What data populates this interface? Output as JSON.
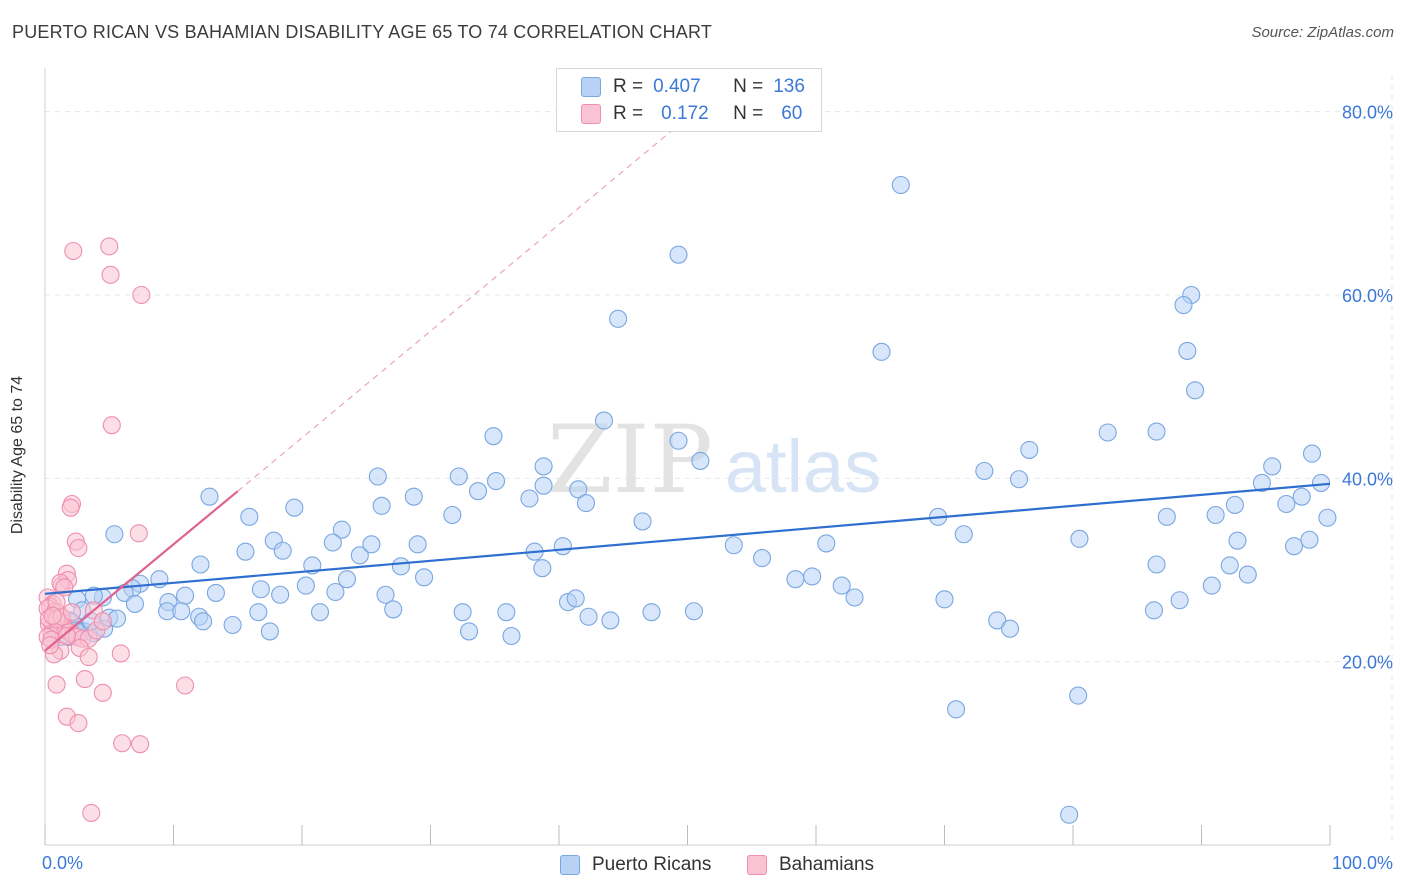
{
  "title": "PUERTO RICAN VS BAHAMIAN DISABILITY AGE 65 TO 74 CORRELATION CHART",
  "source": "Source: ZipAtlas.com",
  "watermark": {
    "zip": "ZIP",
    "atlas": "atlas"
  },
  "legend": {
    "r_label": "R =",
    "n_label": "N =",
    "series": [
      {
        "name": "Puerto Ricans",
        "r": "0.407",
        "n": "136",
        "color": "#7aa7e0",
        "fill": "#b7d2f5"
      },
      {
        "name": "Bahamians",
        "r": "0.172",
        "n": "60",
        "color": "#ee8fae",
        "fill": "#f9c3d4"
      }
    ]
  },
  "colors": {
    "blue_line": "#2f6fcf",
    "pink_line": "#e0628e",
    "axis_text": "#3c78d8",
    "grid": "#e6e6e6"
  },
  "chart_data": {
    "type": "scatter",
    "title": "PUERTO RICAN VS BAHAMIAN DISABILITY AGE 65 TO 74 CORRELATION CHART",
    "xlabel": "",
    "ylabel": "Disability Age 65 to 74",
    "xlim": [
      0,
      100
    ],
    "ylim": [
      0,
      84
    ],
    "x_tick_labels": [
      {
        "value": 0,
        "label": "0.0%"
      },
      {
        "value": 100,
        "label": "100.0%"
      }
    ],
    "y_tick_labels": [
      {
        "value": 20,
        "label": "20.0%"
      },
      {
        "value": 40,
        "label": "40.0%"
      },
      {
        "value": 60,
        "label": "60.0%"
      },
      {
        "value": 80,
        "label": "80.0%"
      }
    ],
    "grid": true,
    "legend_position": "top-center",
    "series": [
      {
        "name": "Puerto Ricans",
        "trend": {
          "x": [
            0,
            100
          ],
          "y": [
            27.4,
            39.4
          ],
          "style": "solid"
        },
        "points": [
          [
            66.6,
            72.0
          ],
          [
            49.3,
            64.4
          ],
          [
            89.2,
            60.0
          ],
          [
            44.6,
            57.4
          ],
          [
            65.1,
            53.8
          ],
          [
            88.6,
            58.9
          ],
          [
            88.9,
            53.9
          ],
          [
            89.5,
            49.6
          ],
          [
            43.5,
            46.3
          ],
          [
            34.9,
            44.6
          ],
          [
            49.3,
            44.1
          ],
          [
            82.7,
            45.0
          ],
          [
            86.5,
            45.1
          ],
          [
            76.6,
            43.1
          ],
          [
            98.6,
            42.7
          ],
          [
            51.0,
            41.9
          ],
          [
            95.5,
            41.3
          ],
          [
            38.8,
            41.3
          ],
          [
            32.2,
            40.2
          ],
          [
            25.9,
            40.2
          ],
          [
            75.8,
            39.9
          ],
          [
            73.1,
            40.8
          ],
          [
            35.1,
            39.7
          ],
          [
            94.7,
            39.5
          ],
          [
            99.3,
            39.5
          ],
          [
            38.8,
            39.2
          ],
          [
            97.8,
            38.0
          ],
          [
            41.5,
            38.8
          ],
          [
            37.7,
            37.8
          ],
          [
            33.7,
            38.6
          ],
          [
            26.2,
            37.0
          ],
          [
            19.4,
            36.8
          ],
          [
            46.5,
            35.3
          ],
          [
            12.8,
            38.0
          ],
          [
            15.9,
            35.8
          ],
          [
            5.4,
            33.9
          ],
          [
            23.1,
            34.4
          ],
          [
            17.8,
            33.2
          ],
          [
            12.1,
            30.6
          ],
          [
            20.8,
            30.5
          ],
          [
            24.5,
            31.6
          ],
          [
            18.5,
            32.1
          ],
          [
            15.6,
            32.0
          ],
          [
            25.4,
            32.8
          ],
          [
            22.4,
            33.0
          ],
          [
            29.0,
            32.8
          ],
          [
            40.3,
            32.6
          ],
          [
            38.1,
            32.0
          ],
          [
            38.7,
            30.2
          ],
          [
            27.7,
            30.4
          ],
          [
            29.5,
            29.2
          ],
          [
            23.5,
            29.0
          ],
          [
            20.3,
            28.3
          ],
          [
            16.8,
            27.9
          ],
          [
            13.3,
            27.5
          ],
          [
            10.9,
            27.2
          ],
          [
            9.6,
            26.5
          ],
          [
            8.9,
            29.0
          ],
          [
            7.4,
            28.5
          ],
          [
            6.8,
            28.0
          ],
          [
            6.2,
            27.5
          ],
          [
            4.5,
            27.0
          ],
          [
            3.8,
            27.2
          ],
          [
            2.5,
            26.8
          ],
          [
            2.9,
            25.6
          ],
          [
            1.9,
            24.5
          ],
          [
            1.4,
            24.3
          ],
          [
            2.1,
            24.3
          ],
          [
            1.1,
            24.0
          ],
          [
            0.8,
            23.4
          ],
          [
            1.8,
            22.7
          ],
          [
            1.2,
            22.7
          ],
          [
            2.7,
            23.4
          ],
          [
            3.1,
            23.3
          ],
          [
            3.8,
            23.1
          ],
          [
            4.6,
            23.6
          ],
          [
            5.0,
            24.8
          ],
          [
            5.6,
            24.7
          ],
          [
            7.0,
            26.3
          ],
          [
            9.5,
            25.5
          ],
          [
            10.6,
            25.5
          ],
          [
            12.0,
            24.9
          ],
          [
            14.6,
            24.0
          ],
          [
            16.6,
            25.4
          ],
          [
            17.5,
            23.3
          ],
          [
            18.3,
            27.3
          ],
          [
            21.4,
            25.4
          ],
          [
            22.6,
            27.6
          ],
          [
            26.5,
            27.3
          ],
          [
            27.1,
            25.7
          ],
          [
            32.5,
            25.4
          ],
          [
            33.0,
            23.3
          ],
          [
            35.9,
            25.4
          ],
          [
            36.3,
            22.8
          ],
          [
            40.7,
            26.5
          ],
          [
            41.3,
            26.9
          ],
          [
            42.3,
            24.9
          ],
          [
            44.0,
            24.5
          ],
          [
            47.2,
            25.4
          ],
          [
            50.5,
            25.5
          ],
          [
            55.8,
            31.3
          ],
          [
            59.7,
            29.3
          ],
          [
            69.5,
            35.8
          ],
          [
            71.5,
            33.9
          ],
          [
            70.0,
            26.8
          ],
          [
            74.1,
            24.5
          ],
          [
            75.1,
            23.6
          ],
          [
            80.5,
            33.4
          ],
          [
            80.4,
            16.3
          ],
          [
            79.7,
            3.3
          ],
          [
            70.9,
            14.8
          ],
          [
            86.5,
            30.6
          ],
          [
            87.3,
            35.8
          ],
          [
            88.3,
            26.7
          ],
          [
            91.1,
            36.0
          ],
          [
            93.6,
            29.5
          ],
          [
            92.8,
            33.2
          ],
          [
            92.6,
            37.1
          ],
          [
            96.6,
            37.2
          ],
          [
            97.2,
            32.6
          ],
          [
            98.4,
            33.3
          ],
          [
            99.8,
            35.7
          ],
          [
            92.2,
            30.5
          ],
          [
            90.8,
            28.3
          ],
          [
            86.3,
            25.6
          ],
          [
            60.8,
            32.9
          ],
          [
            58.4,
            29.0
          ],
          [
            53.6,
            32.7
          ],
          [
            62.0,
            28.3
          ],
          [
            63.0,
            27.0
          ],
          [
            12.3,
            24.4
          ],
          [
            3.6,
            24.4
          ],
          [
            2.4,
            23.4
          ],
          [
            28.7,
            38.0
          ],
          [
            31.7,
            36.0
          ],
          [
            42.1,
            37.3
          ]
        ]
      },
      {
        "name": "Bahamians",
        "trend": {
          "x": [
            0,
            15
          ],
          "y": [
            21.2,
            38.6
          ],
          "style": "solid",
          "extension": {
            "x": [
              15,
              54
            ],
            "y": [
              38.6,
              84
            ],
            "style": "dashed"
          }
        },
        "points": [
          [
            5.0,
            65.3
          ],
          [
            2.2,
            64.8
          ],
          [
            5.1,
            62.2
          ],
          [
            7.5,
            60.0
          ],
          [
            5.2,
            45.8
          ],
          [
            2.1,
            37.2
          ],
          [
            2.0,
            36.8
          ],
          [
            7.3,
            34.0
          ],
          [
            2.4,
            33.1
          ],
          [
            2.6,
            32.4
          ],
          [
            1.7,
            29.6
          ],
          [
            1.3,
            28.3
          ],
          [
            1.8,
            28.9
          ],
          [
            1.2,
            28.6
          ],
          [
            1.5,
            28.1
          ],
          [
            0.2,
            27.0
          ],
          [
            0.6,
            26.3
          ],
          [
            0.4,
            26.0
          ],
          [
            0.2,
            25.8
          ],
          [
            0.8,
            25.5
          ],
          [
            1.0,
            25.3
          ],
          [
            1.2,
            24.9
          ],
          [
            1.4,
            24.2
          ],
          [
            0.3,
            24.1
          ],
          [
            0.6,
            23.9
          ],
          [
            1.0,
            23.5
          ],
          [
            0.5,
            23.1
          ],
          [
            1.6,
            23.5
          ],
          [
            1.9,
            23.2
          ],
          [
            2.2,
            22.9
          ],
          [
            2.5,
            22.7
          ],
          [
            2.9,
            22.5
          ],
          [
            3.4,
            22.5
          ],
          [
            4.0,
            23.4
          ],
          [
            3.8,
            25.6
          ],
          [
            4.5,
            24.4
          ],
          [
            2.7,
            21.5
          ],
          [
            1.2,
            21.2
          ],
          [
            0.7,
            20.8
          ],
          [
            3.4,
            20.5
          ],
          [
            5.9,
            20.9
          ],
          [
            3.1,
            18.1
          ],
          [
            0.9,
            17.5
          ],
          [
            10.9,
            17.4
          ],
          [
            4.5,
            16.6
          ],
          [
            1.7,
            14.0
          ],
          [
            2.6,
            13.3
          ],
          [
            6.0,
            11.1
          ],
          [
            7.4,
            11.0
          ],
          [
            3.6,
            3.5
          ],
          [
            0.3,
            24.7
          ],
          [
            0.9,
            24.6
          ],
          [
            1.3,
            24.9
          ],
          [
            0.2,
            22.7
          ],
          [
            0.5,
            22.4
          ],
          [
            0.4,
            21.8
          ],
          [
            1.7,
            22.8
          ],
          [
            2.1,
            25.4
          ],
          [
            0.9,
            26.5
          ],
          [
            0.6,
            25.0
          ]
        ]
      }
    ]
  }
}
